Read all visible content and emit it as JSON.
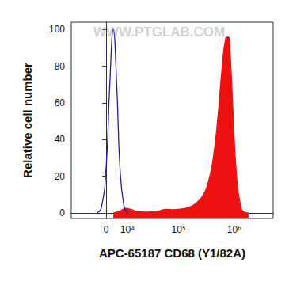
{
  "chart_data": {
    "type": "histogram",
    "watermark": "WWW.PTGLAB.COM",
    "xlabel": "APC-65187 CD68 (Y1/82A)",
    "ylabel": "Relative cell number",
    "xlim": [
      -20000,
      5000000
    ],
    "xticks": [
      0,
      {
        "value": 10000,
        "label": "10⁴"
      },
      {
        "value": 100000,
        "label": "10⁵"
      },
      {
        "value": 1000000,
        "label": "10⁶"
      }
    ],
    "ylim": [
      -3,
      104
    ],
    "yticks": [
      0,
      20,
      40,
      60,
      80,
      100
    ],
    "grid": false,
    "series": [
      {
        "type": "line",
        "color": "#1f1fa0",
        "x": [
          -4000,
          -2000,
          0,
          1500,
          3000,
          4500,
          6000,
          8000,
          10000
        ],
        "values": [
          0,
          3,
          25,
          70,
          100,
          70,
          25,
          4,
          0
        ]
      },
      {
        "type": "area",
        "color": "#ee1111",
        "x": [
          3000,
          6000,
          9000,
          12000,
          16000,
          25000,
          40000,
          60000,
          80000,
          100000,
          150000,
          200000,
          280000,
          350000,
          420000,
          500000,
          600000,
          700000,
          780000,
          850000,
          950000,
          1100000,
          1300000,
          1500000,
          1800000
        ],
        "values": [
          0,
          1,
          2.5,
          2,
          1,
          0.5,
          0.8,
          2,
          1.8,
          2,
          3,
          5,
          10,
          18,
          30,
          50,
          78,
          95,
          96,
          85,
          55,
          20,
          4,
          0.5,
          0
        ]
      }
    ]
  }
}
